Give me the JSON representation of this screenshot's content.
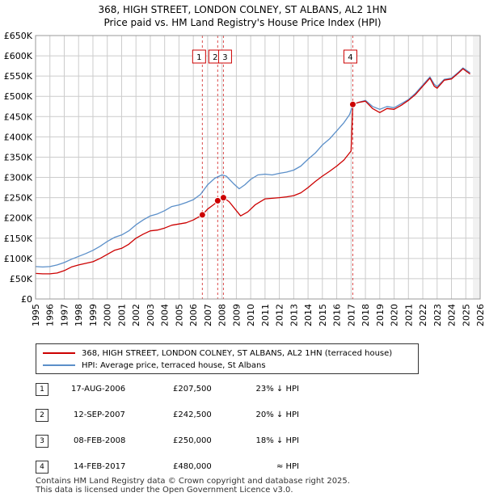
{
  "chart_data": {
    "type": "line",
    "title": "368, HIGH STREET, LONDON COLNEY, ST ALBANS, AL2 1HN",
    "subtitle": "Price paid vs. HM Land Registry's House Price Index (HPI)",
    "xlim": [
      1995,
      2026
    ],
    "ylim": [
      0,
      650000
    ],
    "y_ticks": [
      0,
      50000,
      100000,
      150000,
      200000,
      250000,
      300000,
      350000,
      400000,
      450000,
      500000,
      550000,
      600000,
      650000
    ],
    "y_tick_labels": [
      "£0",
      "£50K",
      "£100K",
      "£150K",
      "£200K",
      "£250K",
      "£300K",
      "£350K",
      "£400K",
      "£450K",
      "£500K",
      "£550K",
      "£600K",
      "£650K"
    ],
    "x_ticks": [
      1995,
      1996,
      1997,
      1998,
      1999,
      2000,
      2001,
      2002,
      2003,
      2004,
      2005,
      2006,
      2007,
      2008,
      2009,
      2010,
      2011,
      2012,
      2013,
      2014,
      2015,
      2016,
      2017,
      2018,
      2019,
      2020,
      2021,
      2022,
      2023,
      2024,
      2025,
      2026
    ],
    "grid": true,
    "series": [
      {
        "name": "368, HIGH STREET, LONDON COLNEY, ST ALBANS, AL2 1HN (terraced house)",
        "color": "#cc0000",
        "points": [
          [
            1995.0,
            63000
          ],
          [
            1995.5,
            62000
          ],
          [
            1996.0,
            62000
          ],
          [
            1996.5,
            64000
          ],
          [
            1997.0,
            70000
          ],
          [
            1997.5,
            79000
          ],
          [
            1998.0,
            84000
          ],
          [
            1998.5,
            88000
          ],
          [
            1999.0,
            92000
          ],
          [
            1999.5,
            100000
          ],
          [
            2000.0,
            110000
          ],
          [
            2000.5,
            120000
          ],
          [
            2001.0,
            125000
          ],
          [
            2001.5,
            135000
          ],
          [
            2002.0,
            150000
          ],
          [
            2002.5,
            160000
          ],
          [
            2003.0,
            168000
          ],
          [
            2003.5,
            170000
          ],
          [
            2004.0,
            175000
          ],
          [
            2004.5,
            182000
          ],
          [
            2005.0,
            185000
          ],
          [
            2005.5,
            188000
          ],
          [
            2006.0,
            195000
          ],
          [
            2006.63,
            207500
          ],
          [
            2007.0,
            222000
          ],
          [
            2007.5,
            235000
          ],
          [
            2007.7,
            242500
          ],
          [
            2008.1,
            250000
          ],
          [
            2008.5,
            240000
          ],
          [
            2009.0,
            218000
          ],
          [
            2009.3,
            205000
          ],
          [
            2009.8,
            215000
          ],
          [
            2010.3,
            232000
          ],
          [
            2011.0,
            247000
          ],
          [
            2012.0,
            250000
          ],
          [
            2012.5,
            252000
          ],
          [
            2013.0,
            255000
          ],
          [
            2013.5,
            262000
          ],
          [
            2014.0,
            275000
          ],
          [
            2014.5,
            290000
          ],
          [
            2015.0,
            303000
          ],
          [
            2015.5,
            315000
          ],
          [
            2016.0,
            328000
          ],
          [
            2016.5,
            343000
          ],
          [
            2017.0,
            365000
          ],
          [
            2017.12,
            480000
          ],
          [
            2017.5,
            485000
          ],
          [
            2018.0,
            488000
          ],
          [
            2018.5,
            470000
          ],
          [
            2019.0,
            460000
          ],
          [
            2019.5,
            470000
          ],
          [
            2020.0,
            468000
          ],
          [
            2020.5,
            478000
          ],
          [
            2021.0,
            490000
          ],
          [
            2021.5,
            505000
          ],
          [
            2022.0,
            525000
          ],
          [
            2022.5,
            545000
          ],
          [
            2022.8,
            525000
          ],
          [
            2023.0,
            520000
          ],
          [
            2023.5,
            540000
          ],
          [
            2024.0,
            543000
          ],
          [
            2024.5,
            558000
          ],
          [
            2024.8,
            568000
          ],
          [
            2025.3,
            555000
          ]
        ]
      },
      {
        "name": "HPI: Average price, terraced house, St Albans",
        "color": "#5b8fc9",
        "points": [
          [
            1995.0,
            80000
          ],
          [
            1995.5,
            79000
          ],
          [
            1996.0,
            80000
          ],
          [
            1996.5,
            84000
          ],
          [
            1997.0,
            90000
          ],
          [
            1997.5,
            98000
          ],
          [
            1998.0,
            105000
          ],
          [
            1998.5,
            112000
          ],
          [
            1999.0,
            120000
          ],
          [
            1999.5,
            130000
          ],
          [
            2000.0,
            142000
          ],
          [
            2000.5,
            152000
          ],
          [
            2001.0,
            158000
          ],
          [
            2001.5,
            168000
          ],
          [
            2002.0,
            183000
          ],
          [
            2002.5,
            195000
          ],
          [
            2003.0,
            205000
          ],
          [
            2003.5,
            210000
          ],
          [
            2004.0,
            218000
          ],
          [
            2004.5,
            228000
          ],
          [
            2005.0,
            232000
          ],
          [
            2005.5,
            238000
          ],
          [
            2006.0,
            245000
          ],
          [
            2006.5,
            258000
          ],
          [
            2007.0,
            282000
          ],
          [
            2007.5,
            298000
          ],
          [
            2008.0,
            306000
          ],
          [
            2008.3,
            303000
          ],
          [
            2008.8,
            285000
          ],
          [
            2009.2,
            272000
          ],
          [
            2009.6,
            282000
          ],
          [
            2010.0,
            295000
          ],
          [
            2010.5,
            306000
          ],
          [
            2011.0,
            308000
          ],
          [
            2011.5,
            306000
          ],
          [
            2012.0,
            310000
          ],
          [
            2012.5,
            313000
          ],
          [
            2013.0,
            318000
          ],
          [
            2013.5,
            328000
          ],
          [
            2014.0,
            345000
          ],
          [
            2014.5,
            360000
          ],
          [
            2015.0,
            380000
          ],
          [
            2015.5,
            395000
          ],
          [
            2016.0,
            415000
          ],
          [
            2016.5,
            435000
          ],
          [
            2016.9,
            455000
          ],
          [
            2017.12,
            480000
          ],
          [
            2017.5,
            485000
          ],
          [
            2018.0,
            490000
          ],
          [
            2018.5,
            475000
          ],
          [
            2019.0,
            468000
          ],
          [
            2019.5,
            475000
          ],
          [
            2020.0,
            472000
          ],
          [
            2020.5,
            482000
          ],
          [
            2021.0,
            492000
          ],
          [
            2021.5,
            508000
          ],
          [
            2022.0,
            528000
          ],
          [
            2022.5,
            548000
          ],
          [
            2022.8,
            530000
          ],
          [
            2023.0,
            524000
          ],
          [
            2023.5,
            542000
          ],
          [
            2024.0,
            545000
          ],
          [
            2024.5,
            560000
          ],
          [
            2024.8,
            570000
          ],
          [
            2025.3,
            558000
          ]
        ]
      }
    ],
    "sales": [
      {
        "id": "1",
        "x": 2006.63,
        "price": 207500
      },
      {
        "id": "2",
        "x": 2007.7,
        "price": 242500
      },
      {
        "id": "3",
        "x": 2008.1,
        "price": 250000
      },
      {
        "id": "4",
        "x": 2017.12,
        "price": 480000
      }
    ],
    "future_start": 2025.5
  },
  "legend": {
    "property_label": "368, HIGH STREET, LONDON COLNEY, ST ALBANS, AL2 1HN (terraced house)",
    "hpi_label": "HPI: Average price, terraced house, St Albans"
  },
  "transactions": [
    {
      "num": "1",
      "date": "17-AUG-2006",
      "price": "£207,500",
      "hpi": "23% ↓ HPI"
    },
    {
      "num": "2",
      "date": "12-SEP-2007",
      "price": "£242,500",
      "hpi": "20% ↓ HPI"
    },
    {
      "num": "3",
      "date": "08-FEB-2008",
      "price": "£250,000",
      "hpi": "18% ↓ HPI"
    },
    {
      "num": "4",
      "date": "14-FEB-2017",
      "price": "£480,000",
      "hpi": "≈ HPI"
    }
  ],
  "footer": {
    "line1": "Contains HM Land Registry data © Crown copyright and database right 2025.",
    "line2": "This data is licensed under the Open Government Licence v3.0."
  }
}
